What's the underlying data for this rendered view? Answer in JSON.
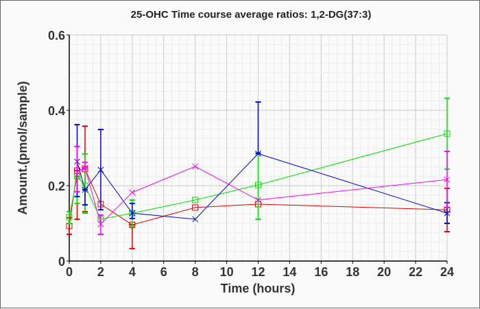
{
  "chart_data": {
    "type": "line",
    "title": "25-OHC Time course average ratios: 1,2-DG(37:3)",
    "xlabel": "Time (hours)",
    "ylabel": "Amount.(pmol/sample)",
    "xlim": [
      0,
      24
    ],
    "ylim": [
      0,
      0.6
    ],
    "xticks": [
      "0",
      "2",
      "4",
      "6",
      "8",
      "10",
      "12",
      "14",
      "16",
      "18",
      "20",
      "22",
      "24"
    ],
    "yticks": [
      "0",
      "0.2",
      "0.4",
      "0.6"
    ],
    "grid": true,
    "series": [
      {
        "name": "red",
        "color": "#e00000",
        "marker": "square",
        "x": [
          0,
          0.5,
          1,
          2,
          4,
          8,
          12,
          24
        ],
        "y": [
          0.093,
          0.24,
          0.244,
          0.151,
          0.096,
          0.142,
          0.151,
          0.136
        ],
        "err_low": [
          0.071,
          0.111,
          0.131,
          null,
          0.033,
          null,
          null,
          0.078
        ],
        "err_high": [
          0.115,
          0.24,
          0.358,
          null,
          0.096,
          null,
          null,
          0.193
        ]
      },
      {
        "name": "green",
        "color": "#00e000",
        "marker": "square",
        "x": [
          0,
          0.5,
          1,
          2,
          4,
          8,
          12,
          24
        ],
        "y": [
          0.116,
          0.225,
          0.2,
          0.111,
          0.127,
          0.162,
          0.202,
          0.338
        ],
        "err_low": [
          0.1,
          0.153,
          0.127,
          null,
          0.091,
          null,
          0.111,
          0.244
        ],
        "err_high": [
          0.131,
          0.225,
          0.284,
          null,
          0.162,
          null,
          0.287,
          0.432
        ]
      },
      {
        "name": "blue",
        "color": "#0000e0",
        "marker": "x",
        "x": [
          0.5,
          1,
          2,
          4,
          8,
          12,
          24
        ],
        "y": [
          0.264,
          0.189,
          0.242,
          0.127,
          0.111,
          0.285,
          0.127
        ],
        "err_low": [
          0.171,
          0.149,
          0.136,
          0.113,
          null,
          0.285,
          0.1
        ],
        "err_high": [
          0.362,
          0.189,
          0.349,
          0.153,
          null,
          0.422,
          0.155
        ]
      },
      {
        "name": "magenta",
        "color": "#ff00ff",
        "marker": "x",
        "x": [
          0.5,
          1,
          2,
          4,
          8,
          12,
          24
        ],
        "y": [
          0.236,
          0.247,
          0.098,
          0.182,
          0.251,
          0.162,
          0.216
        ],
        "err_low": [
          0.184,
          0.247,
          0.071,
          null,
          null,
          null,
          0.142
        ],
        "err_high": [
          0.304,
          0.262,
          0.122,
          null,
          null,
          null,
          0.291
        ]
      }
    ]
  }
}
